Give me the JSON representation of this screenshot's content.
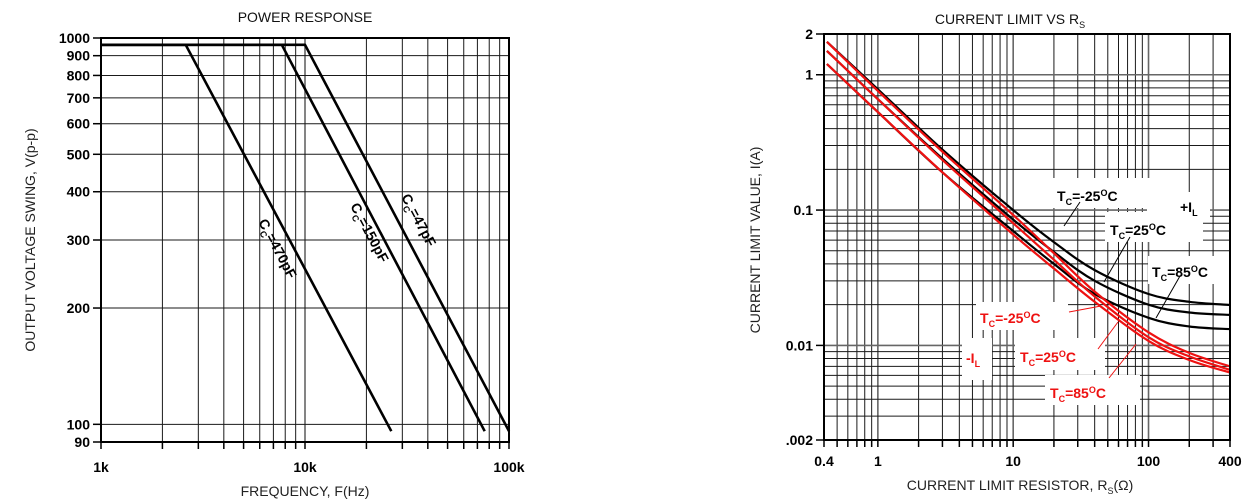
{
  "colors": {
    "black_curve": "#000000",
    "red_curve": "#ee1111",
    "grid": "#1a1a1a",
    "text": "#000000"
  },
  "chart_data": [
    {
      "type": "line",
      "title": "POWER RESPONSE",
      "xlabel": "FREQUENCY, F(Hz)",
      "ylabel": "OUTPUT VOLTAGE SWING, V(p-p)",
      "xscale": "log",
      "yscale": "log",
      "xlim": [
        1000,
        100000
      ],
      "ylim": [
        90,
        1000
      ],
      "x_tick_labels": [
        "1k",
        "10k",
        "100k"
      ],
      "y_tick_labels": [
        "1000",
        "900",
        "800",
        "700",
        "600",
        "500",
        "400",
        "300",
        "200",
        "100",
        "90"
      ],
      "grid": true,
      "series": [
        {
          "name": "CC=470pF",
          "label_main": "C",
          "label_sub": "C",
          "label_rest": "=470pF",
          "x": [
            1000,
            2600,
            26500
          ],
          "y": [
            960,
            960,
            96
          ]
        },
        {
          "name": "CC=150pF",
          "label_main": "C",
          "label_sub": "C",
          "label_rest": "=150pF",
          "x": [
            1000,
            7700,
            76000
          ],
          "y": [
            960,
            960,
            96
          ]
        },
        {
          "name": "CC=47pF",
          "label_main": "C",
          "label_sub": "C",
          "label_rest": "=47pF",
          "x": [
            1000,
            10000,
            100000
          ],
          "y": [
            960,
            960,
            96
          ]
        }
      ]
    },
    {
      "type": "line",
      "title": "CURRENT LIMIT VS R",
      "title_sub": "S",
      "xlabel": "CURRENT LIMIT RESISTOR, R",
      "xlabel_sub": "S",
      "xlabel_tail": "(Ω)",
      "ylabel": "CURRENT LIMIT VALUE, I(A)",
      "xscale": "log",
      "yscale": "log",
      "xlim": [
        0.4,
        400
      ],
      "ylim": [
        0.002,
        2
      ],
      "x_tick_labels": [
        "0.4",
        "1",
        "10",
        "100",
        "400"
      ],
      "y_tick_labels": [
        "2",
        "1",
        "0.1",
        "0.01",
        ".002"
      ],
      "grid": true,
      "series": [
        {
          "name": "+IL TC=-25°C",
          "group": "+IL",
          "color": "black",
          "x": [
            0.42,
            1,
            3,
            10,
            20,
            40,
            100,
            200,
            400
          ],
          "y": [
            1.75,
            0.78,
            0.28,
            0.1,
            0.058,
            0.036,
            0.024,
            0.021,
            0.0199
          ]
        },
        {
          "name": "+IL TC=25°C",
          "group": "+IL",
          "color": "black",
          "x": [
            0.42,
            1,
            3,
            10,
            20,
            40,
            100,
            200,
            400
          ],
          "y": [
            1.5,
            0.66,
            0.24,
            0.085,
            0.049,
            0.03,
            0.02,
            0.0175,
            0.0168
          ]
        },
        {
          "name": "+IL TC=85°C",
          "group": "+IL",
          "color": "black",
          "x": [
            0.42,
            1,
            3,
            10,
            20,
            40,
            100,
            200,
            400
          ],
          "y": [
            1.2,
            0.53,
            0.19,
            0.07,
            0.04,
            0.024,
            0.016,
            0.0138,
            0.0132
          ]
        },
        {
          "name": "-IL TC=-25°C",
          "group": "-IL",
          "color": "red",
          "x": [
            0.42,
            1,
            3,
            10,
            20,
            40,
            100,
            200,
            400
          ],
          "y": [
            1.75,
            0.76,
            0.27,
            0.092,
            0.048,
            0.025,
            0.0125,
            0.0088,
            0.007
          ]
        },
        {
          "name": "-IL TC=25°C",
          "group": "-IL",
          "color": "red",
          "x": [
            0.42,
            1,
            3,
            10,
            20,
            40,
            100,
            200,
            400
          ],
          "y": [
            1.5,
            0.66,
            0.235,
            0.08,
            0.043,
            0.023,
            0.0115,
            0.0083,
            0.0066
          ]
        },
        {
          "name": "-IL TC=85°C",
          "group": "-IL",
          "color": "red",
          "x": [
            0.42,
            1,
            3,
            10,
            20,
            40,
            100,
            200,
            400
          ],
          "y": [
            1.2,
            0.53,
            0.19,
            0.066,
            0.037,
            0.021,
            0.0108,
            0.0078,
            0.0063
          ]
        }
      ],
      "annotations": [
        {
          "text": "T",
          "sub": "C",
          "rest": "=-25",
          "sup": "O",
          "tail": "C",
          "color": "black"
        },
        {
          "text": "+I",
          "sub": "L",
          "rest": "",
          "sup": "",
          "tail": "",
          "color": "black"
        },
        {
          "text": "T",
          "sub": "C",
          "rest": "=25",
          "sup": "O",
          "tail": "C",
          "color": "black"
        },
        {
          "text": "T",
          "sub": "C",
          "rest": "=85",
          "sup": "O",
          "tail": "C",
          "color": "black"
        },
        {
          "text": "T",
          "sub": "C",
          "rest": "=-25",
          "sup": "O",
          "tail": "C",
          "color": "red"
        },
        {
          "text": "-I",
          "sub": "L",
          "rest": "",
          "sup": "",
          "tail": "",
          "color": "red"
        },
        {
          "text": "T",
          "sub": "C",
          "rest": "=25",
          "sup": "O",
          "tail": "C",
          "color": "red"
        },
        {
          "text": "T",
          "sub": "C",
          "rest": "=85",
          "sup": "O",
          "tail": "C",
          "color": "red"
        }
      ]
    }
  ]
}
